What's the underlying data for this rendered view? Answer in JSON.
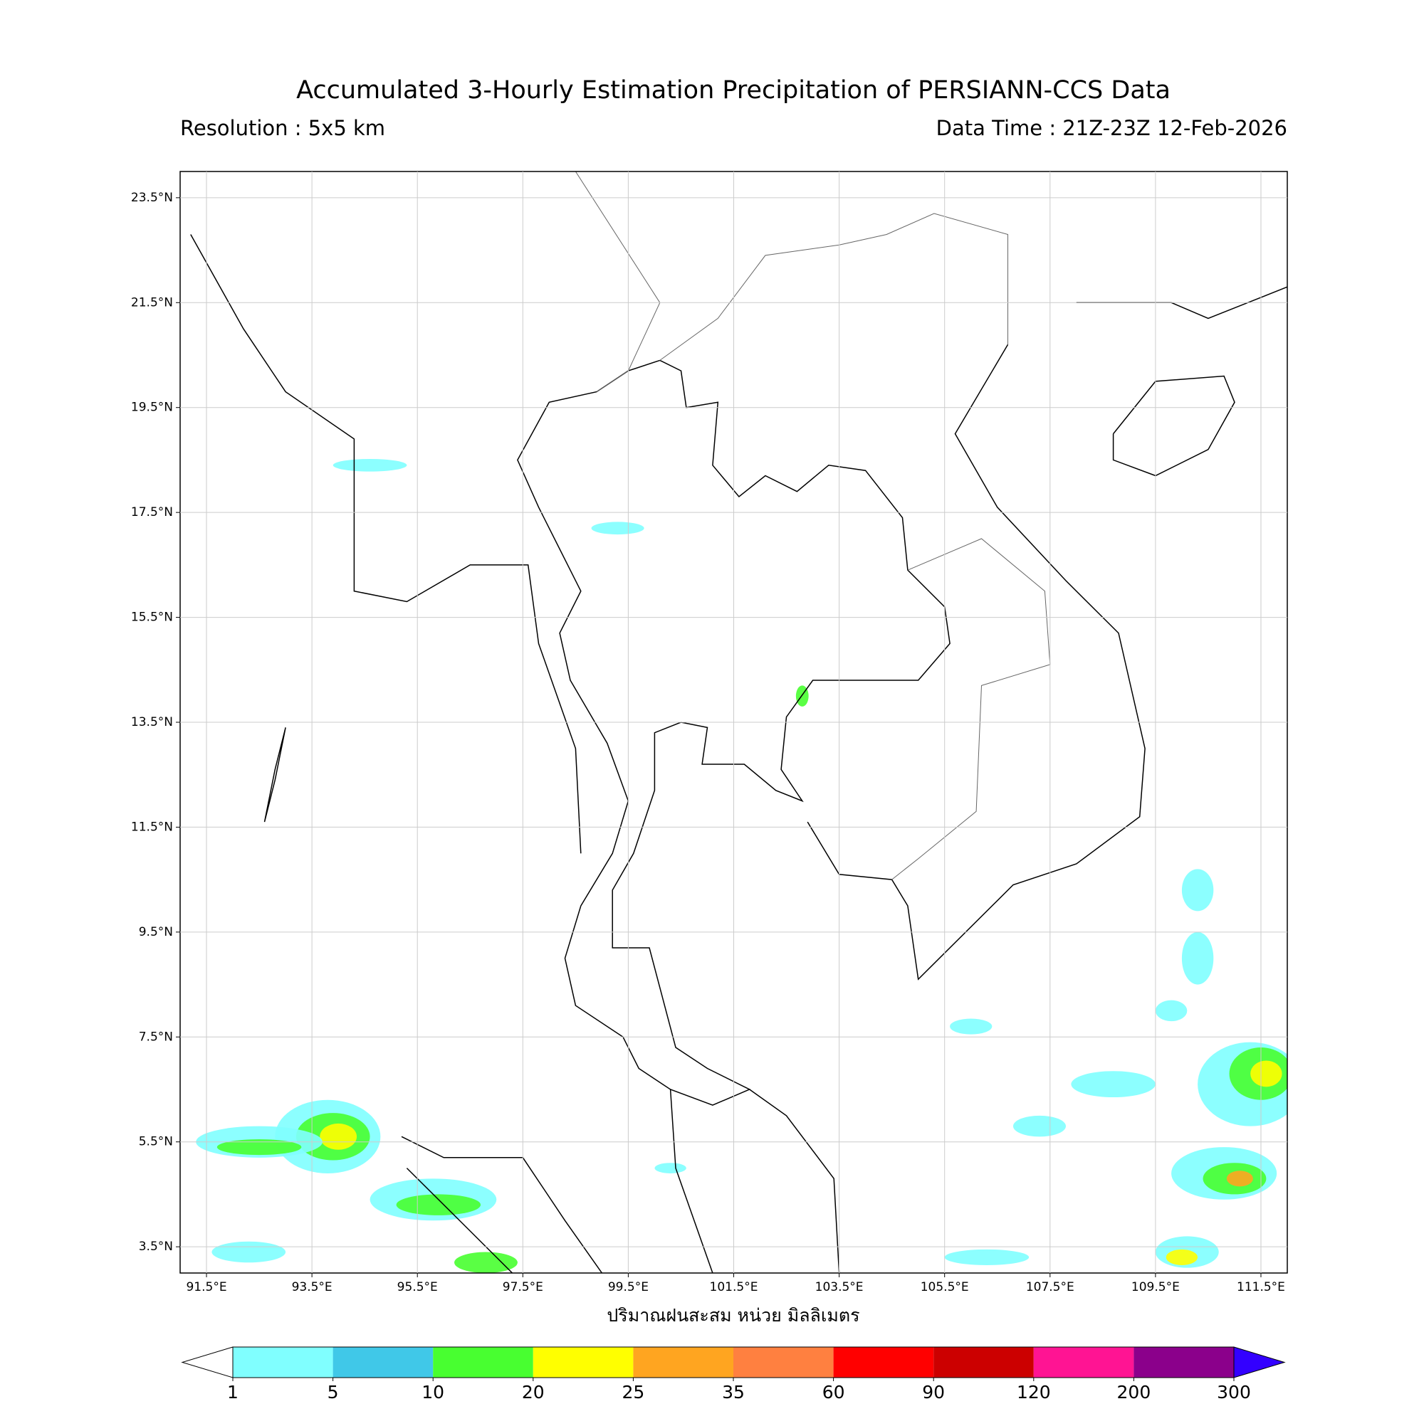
{
  "header": {
    "title": "Accumulated 3-Hourly Estimation Precipitation of PERSIANN-CCS Data",
    "resolution": "Resolution : 5x5 km",
    "data_time": "Data Time : 21Z-23Z 12-Feb-2026"
  },
  "map": {
    "xlim": [
      91,
      112
    ],
    "ylim": [
      3,
      24
    ],
    "grid": true,
    "xticks": [
      {
        "value": 91.5,
        "label": "91.5°E"
      },
      {
        "value": 93.5,
        "label": "93.5°E"
      },
      {
        "value": 95.5,
        "label": "95.5°E"
      },
      {
        "value": 97.5,
        "label": "97.5°E"
      },
      {
        "value": 99.5,
        "label": "99.5°E"
      },
      {
        "value": 101.5,
        "label": "101.5°E"
      },
      {
        "value": 103.5,
        "label": "103.5°E"
      },
      {
        "value": 105.5,
        "label": "105.5°E"
      },
      {
        "value": 107.5,
        "label": "107.5°E"
      },
      {
        "value": 109.5,
        "label": "109.5°E"
      },
      {
        "value": 111.5,
        "label": "111.5°E"
      }
    ],
    "yticks": [
      {
        "value": 3.5,
        "label": "3.5°N"
      },
      {
        "value": 5.5,
        "label": "5.5°N"
      },
      {
        "value": 7.5,
        "label": "7.5°N"
      },
      {
        "value": 9.5,
        "label": "9.5°N"
      },
      {
        "value": 11.5,
        "label": "11.5°N"
      },
      {
        "value": 13.5,
        "label": "13.5°N"
      },
      {
        "value": 15.5,
        "label": "15.5°N"
      },
      {
        "value": 17.5,
        "label": "17.5°N"
      },
      {
        "value": 19.5,
        "label": "19.5°N"
      },
      {
        "value": 21.5,
        "label": "21.5°N"
      },
      {
        "value": 23.5,
        "label": "23.5°N"
      }
    ],
    "xlabel": "ปริมาณฝนสะสม หน่วย มิลลิเมตร"
  },
  "colorbar": {
    "levels": [
      1,
      5,
      10,
      20,
      25,
      35,
      60,
      90,
      120,
      200,
      300
    ],
    "colors": [
      "#80ffff",
      "#40c8e8",
      "#48ff30",
      "#ffff00",
      "#ffa520",
      "#ff8040",
      "#ff0000",
      "#cc0000",
      "#ff1493",
      "#8b008b"
    ],
    "under_color": "#ffffff",
    "over_color": "#3300ff"
  }
}
